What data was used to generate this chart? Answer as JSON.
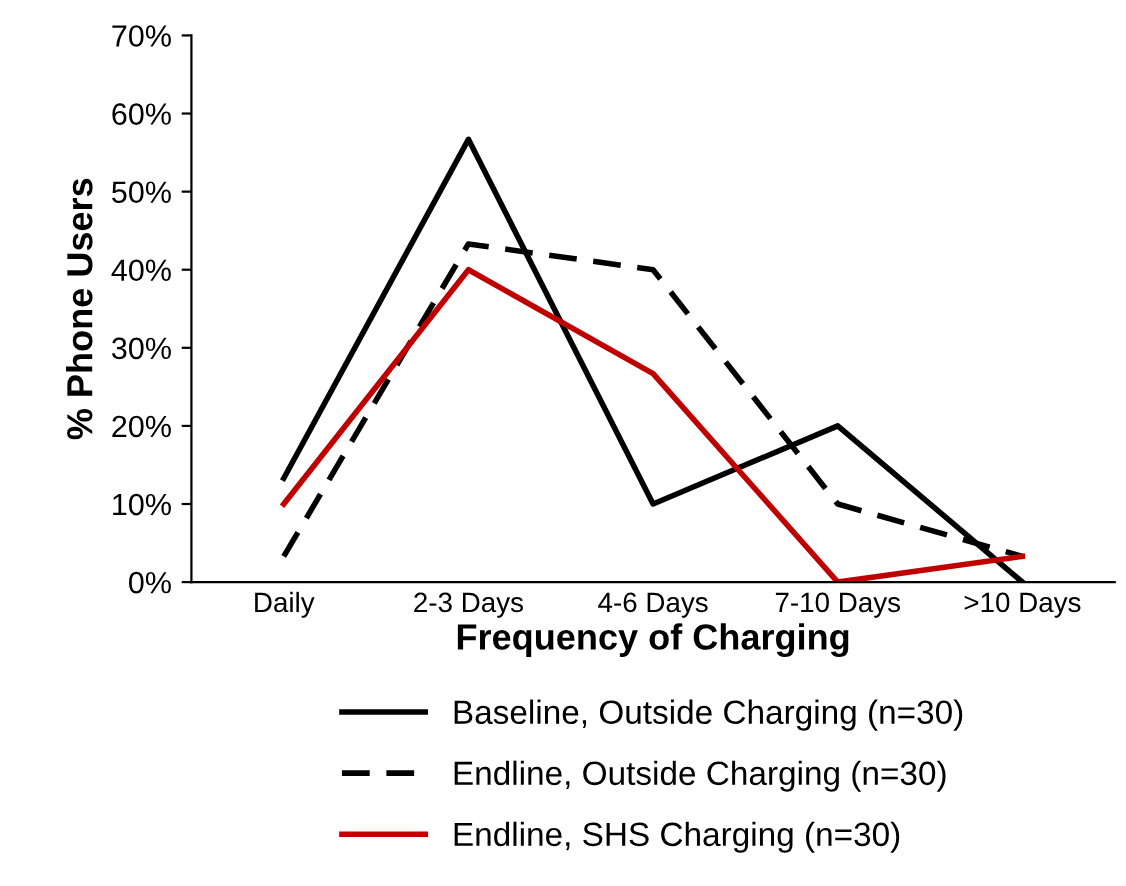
{
  "chart_data": {
    "type": "line",
    "xlabel": "Frequency of Charging",
    "ylabel": "% Phone Users",
    "categories": [
      "Daily",
      "2-3 Days",
      "4-6 Days",
      "7-10 Days",
      ">10 Days"
    ],
    "series": [
      {
        "name": "Baseline, Outside Charging (n=30)",
        "color": "#000000",
        "line_style": "solid",
        "values": [
          13.3,
          56.7,
          10,
          20,
          0
        ]
      },
      {
        "name": "Endline, Outside Charging (n=30)",
        "color": "#000000",
        "line_style": "dashed",
        "values": [
          3.3,
          43.3,
          40,
          10,
          3.3
        ]
      },
      {
        "name": "Endline, SHS Charging (n=30)",
        "color": "#c00000",
        "line_style": "solid",
        "values": [
          10,
          40,
          26.7,
          0,
          3.3
        ]
      }
    ],
    "ylim": [
      0,
      70
    ],
    "yticks": [
      {
        "value": 0,
        "label": "0%"
      },
      {
        "value": 10,
        "label": "10%"
      },
      {
        "value": 20,
        "label": "20%"
      },
      {
        "value": 30,
        "label": "30%"
      },
      {
        "value": 40,
        "label": "40%"
      },
      {
        "value": 50,
        "label": "50%"
      },
      {
        "value": 60,
        "label": "60%"
      },
      {
        "value": 70,
        "label": "70%"
      }
    ],
    "grid": false,
    "legend": "bottom",
    "marker": "none"
  }
}
